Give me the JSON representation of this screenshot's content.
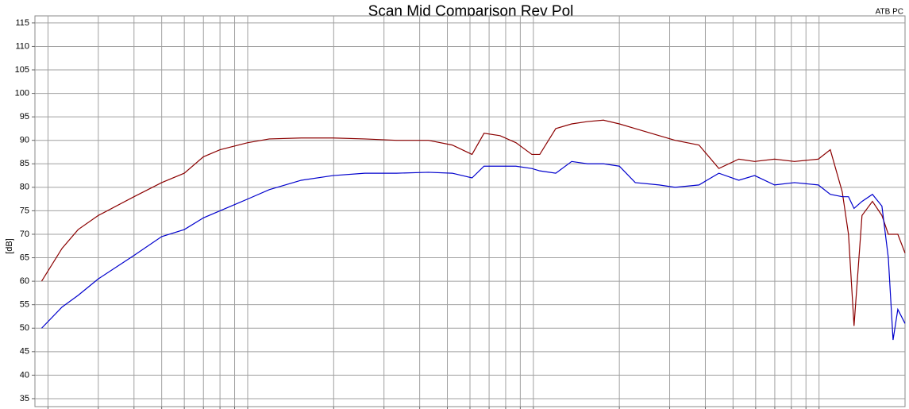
{
  "chart_data": {
    "type": "line",
    "title": "Scan Mid Comparison Rev Pol",
    "subtitle": "ATB PC",
    "y_label": "[dB]",
    "log_x": true,
    "grid": true,
    "x": [
      19,
      22.4,
      25.5,
      30,
      40,
      50,
      60,
      70,
      80,
      100,
      119,
      154,
      199,
      257,
      332,
      429,
      520,
      610,
      672,
      764,
      869,
      988,
      1053,
      1198,
      1362,
      1548,
      1760,
      2000,
      2274,
      2757,
      3134,
      3800,
      4460,
      5235,
      5950,
      6986,
      8200,
      9940,
      10950,
      12060,
      12680,
      13260,
      14140,
      15380,
      16600,
      17480,
      18160,
      18870,
      20000
    ],
    "series": [
      {
        "color": "#8b0000",
        "values": [
          60,
          67,
          71,
          74,
          78,
          81,
          83,
          86.5,
          88,
          89.5,
          90.3,
          90.5,
          90.5,
          90.3,
          90,
          90,
          89,
          87,
          91.5,
          91,
          89.5,
          87,
          87,
          92.5,
          93.5,
          94,
          94.3,
          93.5,
          92.5,
          91,
          90,
          89,
          84,
          86,
          85.5,
          86,
          85.5,
          86,
          88,
          79,
          70,
          50.5,
          74,
          77,
          74,
          70,
          70,
          70,
          66
        ]
      },
      {
        "color": "#0000cd",
        "values": [
          50,
          54.5,
          57,
          60.5,
          65.5,
          69.5,
          71,
          73.5,
          75,
          77.5,
          79.5,
          81.5,
          82.5,
          83,
          83,
          83.2,
          83,
          82,
          84.5,
          84.5,
          84.5,
          84,
          83.5,
          83,
          85.5,
          85,
          85,
          84.5,
          81,
          80.5,
          80,
          80.5,
          83,
          81.5,
          82.5,
          80.5,
          81,
          80.5,
          78.5,
          78,
          78,
          75.5,
          77,
          78.5,
          76,
          65,
          47.5,
          54,
          51
        ]
      }
    ],
    "xlim": [
      18,
      20000
    ],
    "xticks": [
      20,
      30,
      40,
      50,
      60,
      70,
      80,
      90,
      100,
      200,
      300,
      400,
      500,
      600,
      700,
      800,
      900,
      1000,
      2000,
      3000,
      4000,
      5000,
      6000,
      7000,
      8000,
      9000,
      10000
    ],
    "ylim": [
      33.3,
      116.5
    ],
    "yticks": [
      35,
      40,
      45,
      50,
      55,
      60,
      65,
      70,
      75,
      80,
      85,
      90,
      95,
      100,
      105,
      110,
      115
    ]
  }
}
